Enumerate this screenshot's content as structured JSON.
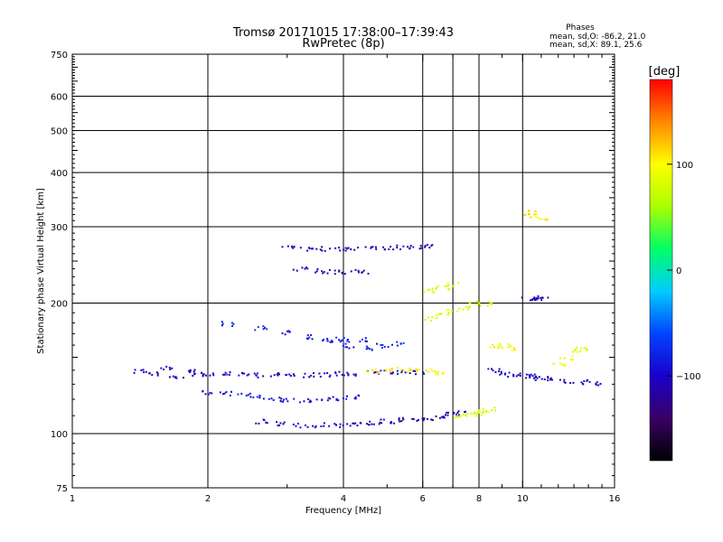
{
  "chart_data": {
    "type": "scatter",
    "title": "Tromsø 20171015 17:38:00–17:39:43",
    "subtitle": "RwPretec (8p)",
    "stats_header": "Phases",
    "stats_o": "mean, sd,O: -86.2, 21.0",
    "stats_x": "mean, sd,X:  89.1, 25.6",
    "xlabel": "Frequency [MHz]",
    "ylabel": "Stationary phase Virtual Height [km]",
    "x_scale": "log",
    "y_scale": "log",
    "xlim": [
      1,
      16
    ],
    "ylim": [
      75,
      750
    ],
    "x_ticks": [
      1,
      2,
      4,
      6,
      8,
      10,
      16
    ],
    "x_tick_labels": [
      "1",
      "2",
      "4",
      "6",
      "8",
      "10",
      "16"
    ],
    "y_ticks": [
      75,
      100,
      200,
      300,
      400,
      500,
      600,
      750
    ],
    "y_tick_labels": [
      "75",
      "100",
      "200",
      "300",
      "400",
      "500",
      "600",
      "750"
    ],
    "x_grid": [
      2,
      4,
      6,
      7,
      8,
      10
    ],
    "y_grid": [
      100,
      200,
      300,
      400,
      500,
      600
    ],
    "grid": true,
    "colorbar": {
      "label": "[deg]",
      "range": [
        -180,
        180
      ],
      "ticks": [
        100,
        0,
        -100
      ],
      "tick_labels": [
        "100",
        "0",
        "−100"
      ],
      "colors": [
        "#000000",
        "#3a0066",
        "#1a00cc",
        "#0044ff",
        "#00ccff",
        "#00ff66",
        "#aaff00",
        "#ffff00",
        "#ff8800",
        "#ff0000"
      ]
    },
    "series": [
      {
        "values": [
          [
            1.4,
            140
          ],
          [
            1.5,
            138
          ],
          [
            1.6,
            142
          ],
          [
            1.7,
            135
          ],
          [
            1.8,
            140
          ],
          [
            1.9,
            138
          ],
          [
            2.0,
            138
          ],
          [
            2.2,
            138
          ],
          [
            2.4,
            137
          ],
          [
            2.6,
            137
          ],
          [
            2.8,
            137
          ],
          [
            3.0,
            137
          ],
          [
            3.3,
            137
          ],
          [
            3.6,
            137
          ],
          [
            3.9,
            138
          ],
          [
            4.2,
            138
          ],
          [
            4.6,
            139
          ],
          [
            5.0,
            139
          ],
          [
            5.4,
            139
          ],
          [
            5.8,
            139
          ]
        ],
        "phase": -105
      },
      {
        "values": [
          [
            2.0,
            125
          ],
          [
            2.2,
            124
          ],
          [
            2.4,
            123
          ],
          [
            2.6,
            122
          ],
          [
            2.8,
            121
          ],
          [
            3.0,
            120
          ],
          [
            3.3,
            120
          ],
          [
            3.6,
            120
          ],
          [
            3.9,
            121
          ],
          [
            4.2,
            122
          ]
        ],
        "phase": -90
      },
      {
        "values": [
          [
            2.6,
            107
          ],
          [
            2.9,
            106
          ],
          [
            3.2,
            105
          ],
          [
            3.5,
            105
          ],
          [
            3.8,
            105
          ],
          [
            4.1,
            105
          ],
          [
            4.4,
            106
          ],
          [
            4.7,
            106
          ],
          [
            5.0,
            107
          ],
          [
            5.4,
            108
          ],
          [
            5.8,
            108
          ],
          [
            6.2,
            109
          ],
          [
            6.6,
            110
          ],
          [
            7.0,
            111
          ],
          [
            7.3,
            112
          ]
        ],
        "phase": -110
      },
      {
        "values": [
          [
            7.3,
            110
          ],
          [
            7.6,
            111
          ],
          [
            7.9,
            112
          ],
          [
            8.2,
            113
          ],
          [
            8.4,
            114
          ]
        ],
        "phase": 80
      },
      {
        "values": [
          [
            4.6,
            140
          ],
          [
            5.0,
            141
          ],
          [
            5.4,
            141
          ],
          [
            5.8,
            141
          ],
          [
            6.2,
            140
          ],
          [
            6.6,
            139
          ]
        ],
        "phase": 100
      },
      {
        "values": [
          [
            3.0,
            270
          ],
          [
            3.3,
            268
          ],
          [
            3.6,
            268
          ],
          [
            3.9,
            268
          ],
          [
            4.2,
            269
          ],
          [
            4.6,
            270
          ],
          [
            5.0,
            270
          ],
          [
            5.4,
            270
          ],
          [
            5.8,
            270
          ],
          [
            6.2,
            271
          ]
        ],
        "phase": -105
      },
      {
        "values": [
          [
            3.2,
            240
          ],
          [
            3.5,
            238
          ],
          [
            3.8,
            237
          ],
          [
            4.1,
            237
          ],
          [
            4.4,
            236
          ]
        ],
        "phase": -110
      },
      {
        "values": [
          [
            2.2,
            180
          ],
          [
            2.6,
            176
          ],
          [
            3.0,
            172
          ],
          [
            3.4,
            168
          ],
          [
            3.7,
            166
          ],
          [
            4.0,
            165
          ],
          [
            4.4,
            165
          ]
        ],
        "phase": -85
      },
      {
        "values": [
          [
            3.8,
            165
          ],
          [
            4.1,
            160
          ],
          [
            4.5,
            158
          ],
          [
            4.9,
            160
          ],
          [
            5.3,
            162
          ]
        ],
        "phase": -80
      },
      {
        "values": [
          [
            6.2,
            185
          ],
          [
            6.6,
            188
          ],
          [
            7.0,
            192
          ],
          [
            7.4,
            196
          ],
          [
            7.8,
            200
          ],
          [
            8.2,
            200
          ]
        ],
        "phase": 85
      },
      {
        "values": [
          [
            6.2,
            215
          ],
          [
            6.6,
            218
          ],
          [
            7.0,
            222
          ]
        ],
        "phase": 80
      },
      {
        "values": [
          [
            8.6,
            140
          ],
          [
            9.0,
            139
          ],
          [
            9.5,
            137
          ],
          [
            10.0,
            136
          ],
          [
            10.5,
            136
          ],
          [
            11.0,
            135
          ],
          [
            11.5,
            134
          ],
          [
            12.5,
            133
          ],
          [
            13.5,
            132
          ],
          [
            14.5,
            131
          ]
        ],
        "phase": -100
      },
      {
        "values": [
          [
            12.0,
            145
          ],
          [
            12.5,
            150
          ],
          [
            13.0,
            155
          ],
          [
            13.5,
            158
          ]
        ],
        "phase": 90
      },
      {
        "values": [
          [
            10.3,
            320
          ],
          [
            10.6,
            325
          ],
          [
            11.0,
            315
          ]
        ],
        "phase": 105
      },
      {
        "values": [
          [
            10.3,
            205
          ],
          [
            10.7,
            206
          ],
          [
            11.0,
            205
          ]
        ],
        "phase": -105
      },
      {
        "values": [
          [
            8.7,
            160
          ],
          [
            9.1,
            160
          ],
          [
            9.4,
            158
          ]
        ],
        "phase": 95
      }
    ]
  }
}
